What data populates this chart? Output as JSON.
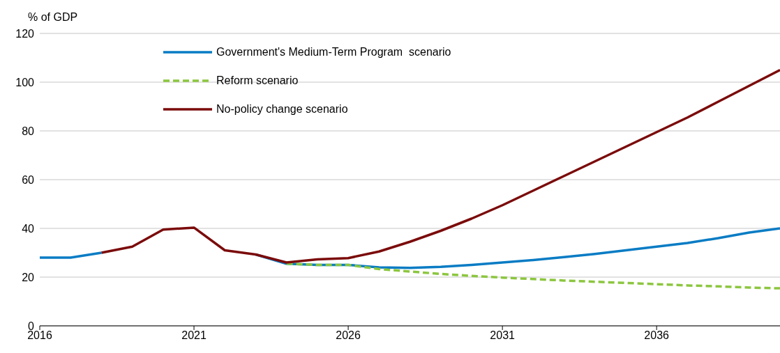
{
  "chart_data": {
    "type": "line",
    "ylabel": "% of GDP",
    "x": [
      2016,
      2017,
      2018,
      2019,
      2020,
      2021,
      2022,
      2023,
      2024,
      2025,
      2026,
      2027,
      2028,
      2029,
      2030,
      2031,
      2032,
      2033,
      2034,
      2035,
      2036,
      2037,
      2038,
      2039,
      2040
    ],
    "series": [
      {
        "name": "Government's Medium-Term Program  scenario",
        "color": "#0a7cc4",
        "line_style": "solid",
        "values": [
          28,
          28,
          30,
          null,
          null,
          null,
          null,
          29.3,
          25.5,
          25,
          25,
          24,
          23.8,
          24.2,
          25,
          26,
          27,
          28.2,
          29.5,
          31,
          32.5,
          34,
          36,
          38.3,
          40
        ]
      },
      {
        "name": "Reform scenario",
        "color": "#8cc63f",
        "line_style": "dashed",
        "values": [
          null,
          null,
          null,
          null,
          null,
          null,
          null,
          null,
          25.5,
          25,
          25,
          23.3,
          22.3,
          21.3,
          20.5,
          19.8,
          19.2,
          18.6,
          18.1,
          17.6,
          17.1,
          16.6,
          16.2,
          15.7,
          15.4
        ]
      },
      {
        "name": "No-policy change scenario",
        "color": "#7b0b0b",
        "line_style": "solid",
        "values": [
          null,
          null,
          30,
          32.5,
          39.5,
          40.3,
          31,
          29.3,
          26,
          27.3,
          27.8,
          30.5,
          34.5,
          39,
          44,
          49.5,
          55.5,
          61.5,
          67.5,
          73.5,
          79.5,
          85.5,
          92,
          98.5,
          105
        ]
      }
    ],
    "xlim": [
      2016,
      2040
    ],
    "xticks": [
      2016,
      2021,
      2026,
      2031,
      2036
    ],
    "ylim": [
      0,
      120
    ],
    "yticks": [
      0,
      20,
      40,
      60,
      80,
      100,
      120
    ],
    "grid": "y",
    "legend": "top left",
    "marker": "none"
  }
}
